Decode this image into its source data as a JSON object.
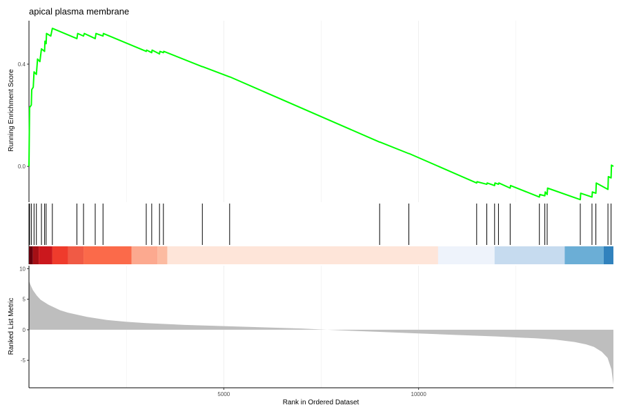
{
  "chart_data": {
    "type": "line",
    "title": "apical plasma membrane",
    "xlabel": "Rank in Ordered Dataset",
    "xlim": [
      0,
      15000
    ],
    "x_ticks": [
      5000,
      10000
    ],
    "grid": true,
    "legend": "none",
    "colors": {
      "curve": "#00ff00",
      "hit": "#000000",
      "metric_fill": "#bebebe",
      "grid": "#ebebeb"
    },
    "running_score": {
      "ylabel": "Running Enrichment Score",
      "ylim": [
        -0.14,
        0.57
      ],
      "y_ticks": [
        0.0,
        0.4
      ],
      "points": [
        [
          0,
          0.0
        ],
        [
          15,
          0.23
        ],
        [
          60,
          0.24
        ],
        [
          70,
          0.3
        ],
        [
          110,
          0.31
        ],
        [
          130,
          0.37
        ],
        [
          190,
          0.36
        ],
        [
          220,
          0.42
        ],
        [
          280,
          0.41
        ],
        [
          320,
          0.46
        ],
        [
          400,
          0.45
        ],
        [
          410,
          0.49
        ],
        [
          440,
          0.48
        ],
        [
          450,
          0.52
        ],
        [
          560,
          0.51
        ],
        [
          600,
          0.54
        ],
        [
          1230,
          0.5
        ],
        [
          1250,
          0.52
        ],
        [
          1400,
          0.51
        ],
        [
          1420,
          0.52
        ],
        [
          1700,
          0.5
        ],
        [
          1720,
          0.52
        ],
        [
          1900,
          0.51
        ],
        [
          1910,
          0.52
        ],
        [
          3010,
          0.45
        ],
        [
          3020,
          0.455
        ],
        [
          3150,
          0.445
        ],
        [
          3160,
          0.455
        ],
        [
          3350,
          0.44
        ],
        [
          3360,
          0.45
        ],
        [
          3450,
          0.445
        ],
        [
          3460,
          0.45
        ],
        [
          4450,
          0.39
        ],
        [
          4460,
          0.39
        ],
        [
          5150,
          0.35
        ],
        [
          5160,
          0.35
        ],
        [
          9000,
          0.095
        ],
        [
          9010,
          0.095
        ],
        [
          9750,
          0.05
        ],
        [
          9760,
          0.05
        ],
        [
          11490,
          -0.065
        ],
        [
          11500,
          -0.06
        ],
        [
          11750,
          -0.07
        ],
        [
          11760,
          -0.065
        ],
        [
          11950,
          -0.075
        ],
        [
          11960,
          -0.065
        ],
        [
          12050,
          -0.07
        ],
        [
          12060,
          -0.065
        ],
        [
          12350,
          -0.085
        ],
        [
          12360,
          -0.075
        ],
        [
          13100,
          -0.12
        ],
        [
          13110,
          -0.11
        ],
        [
          13240,
          -0.115
        ],
        [
          13250,
          -0.1
        ],
        [
          13300,
          -0.11
        ],
        [
          13310,
          -0.085
        ],
        [
          14150,
          -0.13
        ],
        [
          14160,
          -0.105
        ],
        [
          14450,
          -0.12
        ],
        [
          14460,
          -0.1
        ],
        [
          14550,
          -0.105
        ],
        [
          14560,
          -0.065
        ],
        [
          14860,
          -0.09
        ],
        [
          14870,
          -0.04
        ],
        [
          14940,
          -0.045
        ],
        [
          14950,
          0.005
        ],
        [
          15000,
          0.0
        ]
      ]
    },
    "hits": [
      15,
      60,
      130,
      190,
      320,
      400,
      440,
      600,
      1230,
      1400,
      1700,
      1900,
      3010,
      3150,
      3350,
      3450,
      4450,
      5150,
      9000,
      9750,
      11490,
      11750,
      11950,
      12050,
      12350,
      13100,
      13240,
      13300,
      14150,
      14450,
      14550,
      14860,
      14940
    ],
    "rank_bar": [
      {
        "from": 0,
        "to": 100,
        "color": "#67000d"
      },
      {
        "from": 100,
        "to": 250,
        "color": "#a50f15"
      },
      {
        "from": 250,
        "to": 600,
        "color": "#cb181d"
      },
      {
        "from": 600,
        "to": 1000,
        "color": "#ef3b2c"
      },
      {
        "from": 1000,
        "to": 1400,
        "color": "#f05a45"
      },
      {
        "from": 1400,
        "to": 2630,
        "color": "#fb6a4a"
      },
      {
        "from": 2630,
        "to": 3300,
        "color": "#fca98f"
      },
      {
        "from": 3300,
        "to": 3550,
        "color": "#fcbba1"
      },
      {
        "from": 3550,
        "to": 10500,
        "color": "#fee5d9"
      },
      {
        "from": 10500,
        "to": 11950,
        "color": "#eef3fb"
      },
      {
        "from": 11950,
        "to": 13750,
        "color": "#c6dbef"
      },
      {
        "from": 13750,
        "to": 14750,
        "color": "#6baed6"
      },
      {
        "from": 14750,
        "to": 15000,
        "color": "#3182bd"
      }
    ],
    "ranked_metric": {
      "ylabel": "Ranked List Metric",
      "ylim": [
        -9.5,
        10.5
      ],
      "y_ticks": [
        -5,
        0,
        5,
        10
      ],
      "points": [
        [
          0,
          8
        ],
        [
          50,
          7.2
        ],
        [
          100,
          6.5
        ],
        [
          200,
          5.6
        ],
        [
          300,
          4.9
        ],
        [
          500,
          4.1
        ],
        [
          800,
          3.2
        ],
        [
          1000,
          2.8
        ],
        [
          1500,
          2.1
        ],
        [
          2000,
          1.6
        ],
        [
          2500,
          1.3
        ],
        [
          3000,
          1.1
        ],
        [
          4000,
          0.8
        ],
        [
          5000,
          0.6
        ],
        [
          6000,
          0.4
        ],
        [
          7000,
          0.2
        ],
        [
          7500,
          0.05
        ],
        [
          8000,
          -0.1
        ],
        [
          9000,
          -0.35
        ],
        [
          10000,
          -0.6
        ],
        [
          11000,
          -0.85
        ],
        [
          12000,
          -1.1
        ],
        [
          13000,
          -1.4
        ],
        [
          13500,
          -1.6
        ],
        [
          14000,
          -2.0
        ],
        [
          14300,
          -2.4
        ],
        [
          14500,
          -2.8
        ],
        [
          14700,
          -3.6
        ],
        [
          14850,
          -4.6
        ],
        [
          14950,
          -6.5
        ],
        [
          15000,
          -9
        ]
      ]
    }
  }
}
